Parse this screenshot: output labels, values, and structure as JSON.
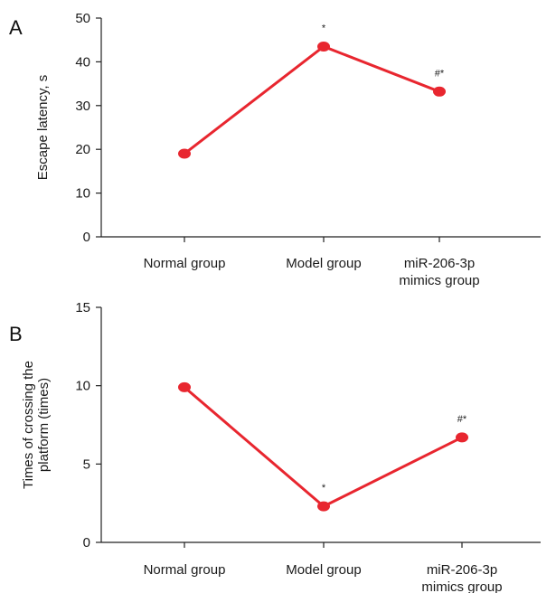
{
  "colors": {
    "series": "#e8262f",
    "axis": "#222222"
  },
  "chart_data": [
    {
      "type": "line",
      "panel_label": "A",
      "title": "",
      "xlabel": "",
      "ylabel": "Escape latency, s",
      "categories": [
        [
          "Normal group"
        ],
        [
          "Model group"
        ],
        [
          "miR-206-3p",
          "mimics group"
        ]
      ],
      "yticks": [
        0,
        10,
        20,
        30,
        40,
        50
      ],
      "ylim": [
        0,
        50
      ],
      "grid": false,
      "series": [
        {
          "values": [
            19,
            43.5,
            33.2
          ]
        }
      ],
      "annotations": [
        "",
        "*",
        "#*"
      ]
    },
    {
      "type": "line",
      "panel_label": "B",
      "title": "",
      "xlabel": "",
      "ylabel": [
        "Times of crossing the",
        "platform (times)"
      ],
      "categories": [
        [
          "Normal group"
        ],
        [
          "Model group"
        ],
        [
          "miR-206-3p",
          "mimics group"
        ]
      ],
      "yticks": [
        0,
        5,
        10,
        15
      ],
      "ylim": [
        0,
        15
      ],
      "grid": false,
      "series": [
        {
          "values": [
            9.9,
            2.3,
            6.7
          ]
        }
      ],
      "annotations": [
        "",
        "*",
        "#*"
      ]
    }
  ]
}
